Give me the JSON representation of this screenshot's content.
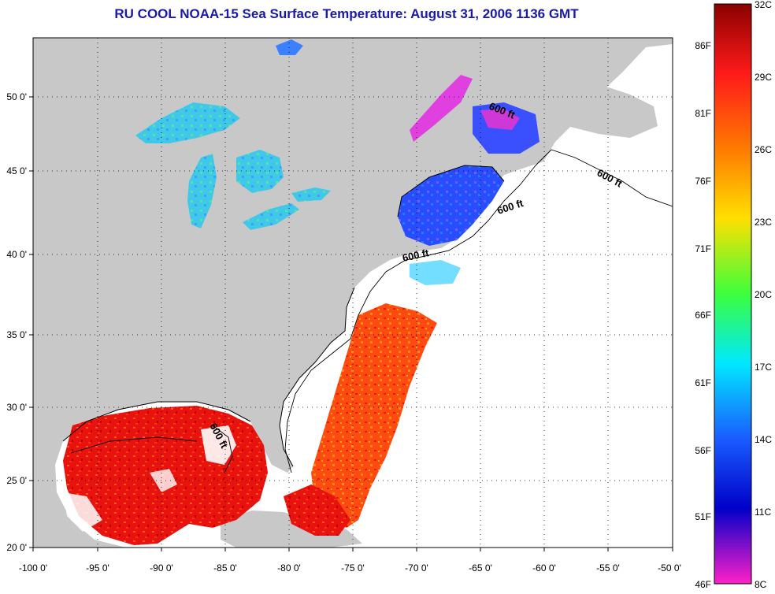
{
  "title": "RU COOL  NOAA-15  Sea Surface Temperature:  August 31, 2006 1136 GMT",
  "x_ticks": [
    "-100 0'",
    "-95 0'",
    "-90 0'",
    "-85 0'",
    "-80 0'",
    "-75 0'",
    "-70 0'",
    "-65 0'",
    "-60 0'",
    "-55 0'",
    "-50 0'"
  ],
  "y_ticks": [
    "50 0'",
    "45 0'",
    "40 0'",
    "35 0'",
    "30 0'",
    "25 0'",
    "20 0'"
  ],
  "depth_labels": [
    "600 ft",
    "600 ft",
    "600 ft",
    "600 ft",
    "600 ft"
  ],
  "colorbar": {
    "celsius": [
      "32C",
      "29C",
      "26C",
      "23C",
      "20C",
      "17C",
      "14C",
      "11C",
      "8C"
    ],
    "fahrenheit": [
      "86F",
      "81F",
      "76F",
      "71F",
      "66F",
      "61F",
      "56F",
      "51F",
      "46F"
    ],
    "colors": [
      "#8b0000",
      "#ff1a1a",
      "#ff7a00",
      "#ffe000",
      "#3cff3c",
      "#00e8ff",
      "#1a5cff",
      "#0000c8",
      "#ff20c8"
    ]
  },
  "colors": {
    "land": "#c8c8c8",
    "ocean_nodata": "#ffffff",
    "lakes": "#4ad0e0",
    "gulf_sst": "#e01010",
    "atlantic_sst": "#ff4010",
    "gulf_of_maine_sst": "#2a4cff",
    "title": "#1a1aa8"
  }
}
